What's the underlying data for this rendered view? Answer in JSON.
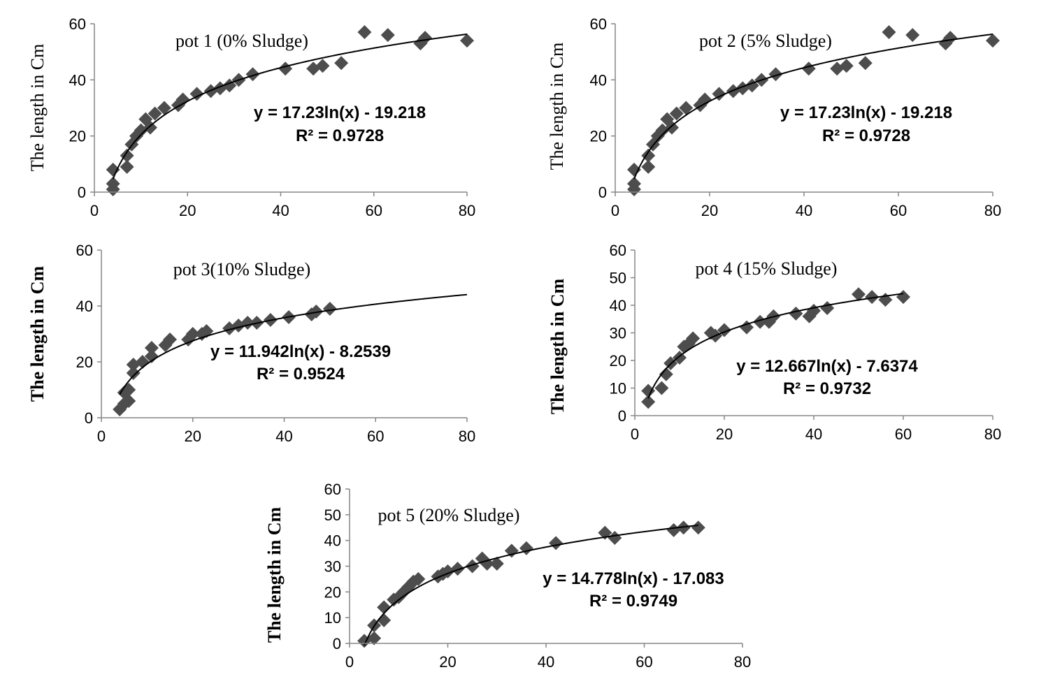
{
  "chart_data": [
    {
      "type": "scatter",
      "title": "pot 1 (0% Sludge)",
      "ylabel": "The length in Cm",
      "xlim": [
        0,
        80
      ],
      "ylim": [
        0,
        60
      ],
      "xticks": [
        "0",
        "20",
        "40",
        "60",
        "80"
      ],
      "yticks": [
        "0",
        "20",
        "40",
        "60"
      ],
      "trendline": {
        "a": 17.23,
        "b": -19.218,
        "x_range": [
          4,
          80
        ]
      },
      "equation": "y = 17.23ln(x) - 19.218",
      "r2": "R² = 0.9728",
      "points": [
        [
          4,
          1
        ],
        [
          4,
          3
        ],
        [
          4,
          8
        ],
        [
          7,
          9
        ],
        [
          7,
          13
        ],
        [
          8,
          17
        ],
        [
          9,
          20
        ],
        [
          10,
          22
        ],
        [
          11,
          26
        ],
        [
          12,
          23
        ],
        [
          13,
          28
        ],
        [
          15,
          30
        ],
        [
          18,
          31
        ],
        [
          19,
          33
        ],
        [
          22,
          35
        ],
        [
          25,
          36
        ],
        [
          27,
          37
        ],
        [
          29,
          38
        ],
        [
          31,
          40
        ],
        [
          34,
          42
        ],
        [
          41,
          44
        ],
        [
          47,
          44
        ],
        [
          49,
          45
        ],
        [
          53,
          46
        ],
        [
          58,
          57
        ],
        [
          63,
          56
        ],
        [
          70,
          53
        ],
        [
          71,
          55
        ],
        [
          80,
          54
        ]
      ]
    },
    {
      "type": "scatter",
      "title": "pot 2 (5% Sludge)",
      "ylabel": "The length in Cm",
      "xlim": [
        0,
        80
      ],
      "ylim": [
        0,
        60
      ],
      "xticks": [
        "0",
        "20",
        "40",
        "60",
        "80"
      ],
      "yticks": [
        "0",
        "20",
        "40",
        "60"
      ],
      "trendline": {
        "a": 17.23,
        "b": -19.218,
        "x_range": [
          4,
          80
        ]
      },
      "equation": "y = 17.23ln(x) - 19.218",
      "r2": "R² = 0.9728",
      "points": [
        [
          4,
          1
        ],
        [
          4,
          3
        ],
        [
          4,
          8
        ],
        [
          7,
          9
        ],
        [
          7,
          13
        ],
        [
          8,
          17
        ],
        [
          9,
          20
        ],
        [
          10,
          22
        ],
        [
          11,
          26
        ],
        [
          12,
          23
        ],
        [
          13,
          28
        ],
        [
          15,
          30
        ],
        [
          18,
          31
        ],
        [
          19,
          33
        ],
        [
          22,
          35
        ],
        [
          25,
          36
        ],
        [
          27,
          37
        ],
        [
          29,
          38
        ],
        [
          31,
          40
        ],
        [
          34,
          42
        ],
        [
          41,
          44
        ],
        [
          47,
          44
        ],
        [
          49,
          45
        ],
        [
          53,
          46
        ],
        [
          58,
          57
        ],
        [
          63,
          56
        ],
        [
          70,
          53
        ],
        [
          71,
          55
        ],
        [
          80,
          54
        ]
      ]
    },
    {
      "type": "scatter",
      "title": "pot 3(10% Sludge)",
      "ylabel": "The length in Cm",
      "xlim": [
        0,
        80
      ],
      "ylim": [
        0,
        60
      ],
      "xticks": [
        "0",
        "20",
        "40",
        "60",
        "80"
      ],
      "yticks": [
        "0",
        "20",
        "40",
        "60"
      ],
      "trendline": {
        "a": 11.942,
        "b": -8.2539,
        "x_range": [
          4,
          80
        ]
      },
      "equation": "y = 11.942ln(x) - 8.2539",
      "r2": "R² = 0.9524",
      "points": [
        [
          4,
          3
        ],
        [
          5,
          5
        ],
        [
          5,
          9
        ],
        [
          6,
          10
        ],
        [
          6,
          6
        ],
        [
          7,
          16
        ],
        [
          7,
          19
        ],
        [
          9,
          20
        ],
        [
          11,
          22
        ],
        [
          11,
          25
        ],
        [
          14,
          26
        ],
        [
          15,
          28
        ],
        [
          19,
          28
        ],
        [
          20,
          30
        ],
        [
          22,
          30
        ],
        [
          23,
          31
        ],
        [
          28,
          32
        ],
        [
          30,
          33
        ],
        [
          32,
          34
        ],
        [
          34,
          34
        ],
        [
          37,
          35
        ],
        [
          41,
          36
        ],
        [
          46,
          37
        ],
        [
          47,
          38
        ],
        [
          50,
          39
        ]
      ]
    },
    {
      "type": "scatter",
      "title": "pot 4 (15% Sludge)",
      "ylabel": "The length in Cm",
      "xlim": [
        0,
        80
      ],
      "ylim": [
        0,
        60
      ],
      "xticks": [
        "0",
        "20",
        "40",
        "60",
        "80"
      ],
      "yticks": [
        "0",
        "10",
        "20",
        "30",
        "40",
        "50",
        "60"
      ],
      "trendline": {
        "a": 12.667,
        "b": -7.6374,
        "x_range": [
          3,
          60
        ]
      },
      "equation": "y = 12.667ln(x) - 7.6374",
      "r2": "R² = 0.9732",
      "points": [
        [
          3,
          5
        ],
        [
          3,
          9
        ],
        [
          6,
          10
        ],
        [
          7,
          15
        ],
        [
          8,
          19
        ],
        [
          10,
          21
        ],
        [
          11,
          25
        ],
        [
          12,
          26
        ],
        [
          13,
          28
        ],
        [
          17,
          30
        ],
        [
          18,
          29
        ],
        [
          20,
          31
        ],
        [
          25,
          32
        ],
        [
          28,
          34
        ],
        [
          30,
          34
        ],
        [
          31,
          36
        ],
        [
          36,
          37
        ],
        [
          39,
          36
        ],
        [
          40,
          38
        ],
        [
          43,
          39
        ],
        [
          50,
          44
        ],
        [
          53,
          43
        ],
        [
          56,
          42
        ],
        [
          60,
          43
        ]
      ]
    },
    {
      "type": "scatter",
      "title": "pot 5 (20% Sludge)",
      "ylabel": "The length in Cm",
      "xlim": [
        0,
        80
      ],
      "ylim": [
        0,
        60
      ],
      "xticks": [
        "0",
        "20",
        "40",
        "60",
        "80"
      ],
      "yticks": [
        "0",
        "10",
        "20",
        "30",
        "40",
        "50",
        "60"
      ],
      "trendline": {
        "a": 14.778,
        "b": -17.083,
        "x_range": [
          3,
          71
        ]
      },
      "equation": "y = 14.778ln(x) - 17.083",
      "r2": "R² = 0.9749",
      "points": [
        [
          3,
          1
        ],
        [
          5,
          2
        ],
        [
          5,
          7
        ],
        [
          7,
          9
        ],
        [
          7,
          14
        ],
        [
          9,
          17
        ],
        [
          10,
          18
        ],
        [
          11,
          20
        ],
        [
          12,
          22
        ],
        [
          13,
          24
        ],
        [
          14,
          25
        ],
        [
          18,
          26
        ],
        [
          19,
          27
        ],
        [
          20,
          28
        ],
        [
          22,
          29
        ],
        [
          25,
          30
        ],
        [
          27,
          33
        ],
        [
          28,
          31
        ],
        [
          30,
          31
        ],
        [
          33,
          36
        ],
        [
          36,
          37
        ],
        [
          42,
          39
        ],
        [
          52,
          43
        ],
        [
          54,
          41
        ],
        [
          66,
          44
        ],
        [
          68,
          45
        ],
        [
          71,
          45
        ]
      ]
    }
  ]
}
